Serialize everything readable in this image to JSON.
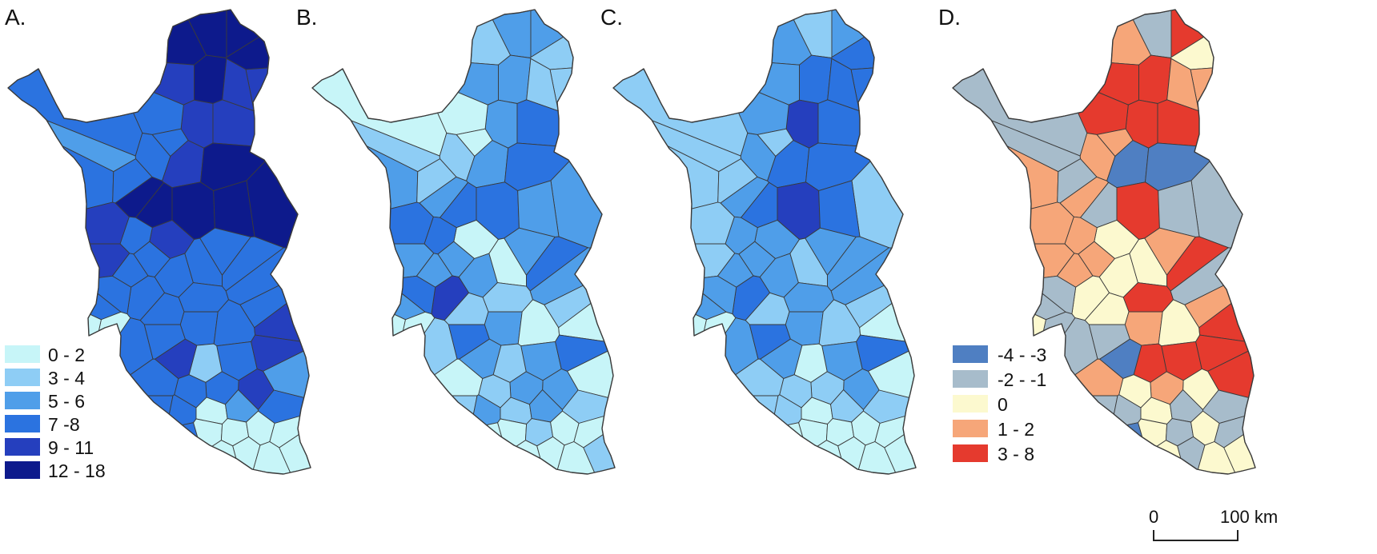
{
  "figure": {
    "panels": [
      {
        "label": "A.",
        "palette": "blue6",
        "classes": [
          5,
          5,
          5,
          5,
          4,
          4,
          5,
          4,
          4,
          4,
          3,
          3,
          3,
          2,
          3,
          3,
          5,
          3,
          4,
          5,
          5,
          5,
          5,
          5,
          4,
          3,
          4,
          4,
          3,
          3,
          3,
          3,
          3,
          3,
          3,
          3,
          3,
          3,
          3,
          3,
          3,
          3,
          3,
          3,
          3,
          4,
          3,
          1,
          4,
          3,
          4,
          2,
          4,
          3,
          3,
          3,
          3,
          0,
          2,
          3,
          3,
          0,
          0,
          0,
          0,
          0,
          0,
          0,
          0,
          0,
          0,
          0,
          0
        ]
      },
      {
        "label": "B.",
        "palette": "blue6",
        "classes": [
          1,
          2,
          2,
          1,
          1,
          2,
          2,
          1,
          2,
          3,
          0,
          0,
          0,
          1,
          2,
          1,
          2,
          1,
          2,
          3,
          3,
          3,
          2,
          2,
          0,
          3,
          3,
          2,
          2,
          2,
          2,
          0,
          2,
          3,
          1,
          2,
          4,
          1,
          3,
          2,
          1,
          3,
          2,
          0,
          1,
          0,
          2,
          1,
          2,
          0,
          3,
          0,
          2,
          2,
          1,
          1,
          2,
          1,
          2,
          1,
          0,
          0,
          1,
          0,
          0,
          0,
          1,
          0,
          0,
          0,
          1,
          0,
          0
        ]
      },
      {
        "label": "C.",
        "palette": "blue6",
        "classes": [
          2,
          1,
          2,
          3,
          3,
          2,
          3,
          3,
          4,
          3,
          2,
          1,
          1,
          1,
          1,
          1,
          2,
          2,
          3,
          3,
          3,
          4,
          1,
          3,
          2,
          2,
          1,
          1,
          2,
          2,
          2,
          1,
          2,
          2,
          2,
          2,
          3,
          1,
          2,
          2,
          2,
          3,
          2,
          1,
          1,
          0,
          2,
          0,
          2,
          1,
          3,
          0,
          2,
          1,
          1,
          1,
          1,
          0,
          1,
          1,
          0,
          0,
          0,
          0,
          0,
          0,
          0,
          0,
          0,
          0,
          0,
          0,
          0
        ]
      },
      {
        "label": "D.",
        "palette": "div5",
        "classes": [
          3,
          1,
          4,
          2,
          3,
          4,
          4,
          3,
          4,
          4,
          4,
          3,
          1,
          1,
          3,
          1,
          3,
          3,
          0,
          0,
          1,
          4,
          1,
          1,
          2,
          3,
          3,
          3,
          3,
          3,
          2,
          2,
          3,
          4,
          4,
          1,
          2,
          2,
          1,
          1,
          1,
          1,
          3,
          2,
          3,
          4,
          4,
          4,
          0,
          3,
          4,
          4,
          2,
          3,
          2,
          1,
          1,
          2,
          1,
          1,
          0,
          2,
          1,
          2,
          0,
          1,
          0,
          2,
          1,
          2,
          2,
          1,
          2
        ]
      }
    ],
    "legend_left": {
      "palette": "blue6",
      "labels": [
        "0 - 2",
        "3 - 4",
        "5 - 6",
        "7 -8",
        "9 - 11",
        "12 - 18"
      ]
    },
    "legend_right": {
      "palette": "div5",
      "labels": [
        "-4 - -3",
        "-2 - -1",
        "0",
        "1 - 2",
        "3 - 8"
      ]
    },
    "palettes": {
      "blue6": [
        "#c7f5f8",
        "#8ecdf5",
        "#4f9ee9",
        "#2b73e0",
        "#253fbe",
        "#0d1a8c"
      ],
      "div5": [
        "#4f7fc2",
        "#a7bccb",
        "#fcf9cf",
        "#f6a679",
        "#e53a2e"
      ]
    },
    "scale_bar": {
      "start_label": "0",
      "end_label": "100 km"
    }
  }
}
